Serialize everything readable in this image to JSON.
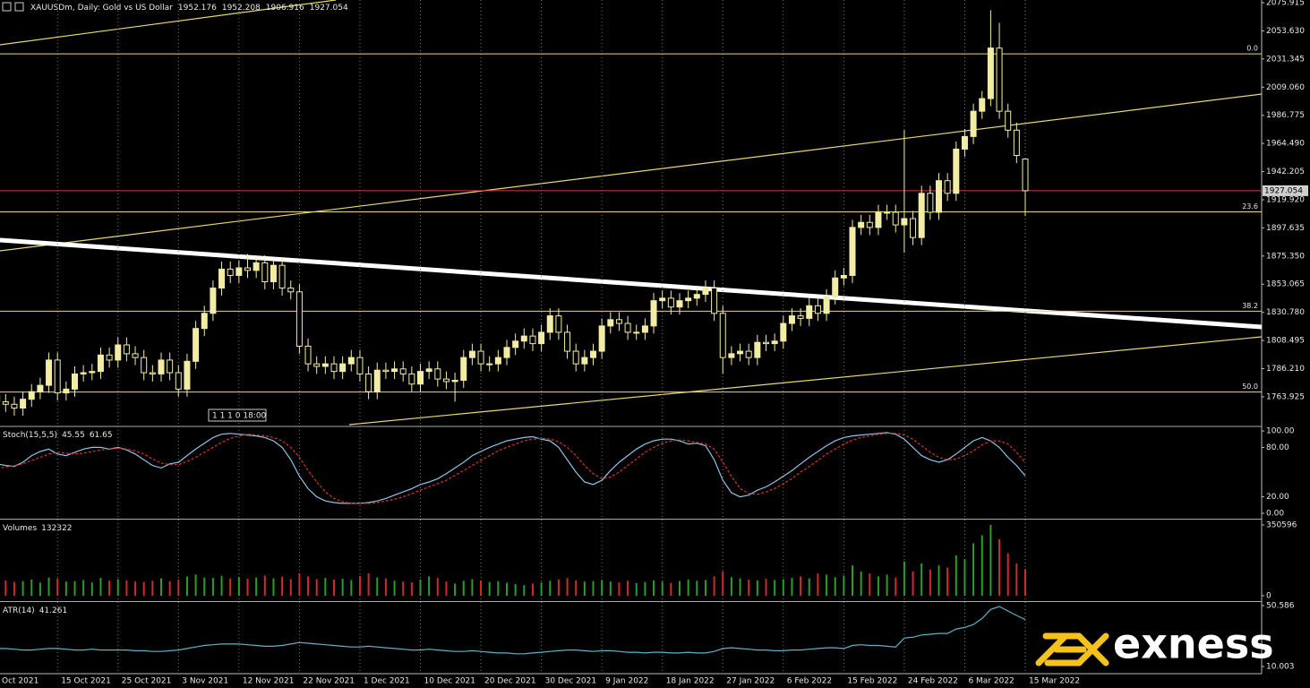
{
  "chart_data": [
    {
      "type": "candlestick",
      "title": "XAUUSDm, Daily:  Gold vs US Dollar",
      "color": "#f3eca4",
      "grid": true,
      "price_line_color": "#d23b3b",
      "fib_color": "#e8d96a",
      "timer": "1 1 1 0 18:00",
      "categories": [
        "Oct 2021",
        null,
        null,
        null,
        null,
        null,
        null,
        "15 Oct 2021",
        null,
        null,
        null,
        null,
        null,
        null,
        "25 Oct 2021",
        null,
        null,
        null,
        null,
        null,
        null,
        "3 Nov 2021",
        null,
        null,
        null,
        null,
        null,
        null,
        "12 Nov 2021",
        null,
        null,
        null,
        null,
        null,
        null,
        "22 Nov 2021",
        null,
        null,
        null,
        null,
        null,
        null,
        "1 Dec 2021",
        null,
        null,
        null,
        null,
        null,
        null,
        "10 Dec 2021",
        null,
        null,
        null,
        null,
        null,
        null,
        "20 Dec 2021",
        null,
        null,
        null,
        null,
        null,
        null,
        "30 Dec 2021",
        null,
        null,
        null,
        null,
        null,
        null,
        "9 Jan 2022",
        null,
        null,
        null,
        null,
        null,
        null,
        "18 Jan 2022",
        null,
        null,
        null,
        null,
        null,
        null,
        "27 Jan 2022",
        null,
        null,
        null,
        null,
        null,
        null,
        "6 Feb 2022",
        null,
        null,
        null,
        null,
        null,
        null,
        "15 Feb 2022",
        null,
        null,
        null,
        null,
        null,
        null,
        "24 Feb 2022",
        null,
        null,
        null,
        null,
        null,
        null,
        "6 Mar 2022",
        null,
        null,
        null,
        null,
        null,
        null,
        "15 Mar 2022"
      ],
      "open": [
        1765,
        1760,
        1758,
        1755,
        1762,
        1768,
        1773,
        1793,
        1767,
        1770,
        1782,
        1783,
        1784,
        1797,
        1793,
        1805,
        1798,
        1795,
        1783,
        1782,
        1793,
        1783,
        1770,
        1792,
        1818,
        1830,
        1850,
        1865,
        1860,
        1866,
        1864,
        1870,
        1855,
        1868,
        1850,
        1847,
        1804,
        1790,
        1788,
        1790,
        1784,
        1790,
        1795,
        1782,
        1768,
        1785,
        1784,
        1786,
        1782,
        1774,
        1784,
        1786,
        1778,
        1776,
        1777,
        1795,
        1800,
        1790,
        1790,
        1795,
        1803,
        1808,
        1812,
        1806,
        1815,
        1828,
        1815,
        1800,
        1790,
        1795,
        1800,
        1820,
        1825,
        1822,
        1815,
        1815,
        1820,
        1840,
        1842,
        1835,
        1840,
        1842,
        1845,
        1850,
        1830,
        1795,
        1798,
        1800,
        1795,
        1807,
        1806,
        1808,
        1822,
        1828,
        1826,
        1836,
        1830,
        1843,
        1858,
        1860,
        1898,
        1902,
        1898,
        1910,
        1910,
        1900,
        1905,
        1890,
        1925,
        1910,
        1935,
        1925,
        1960,
        1970,
        1990,
        2000,
        2040,
        1990,
        1975,
        1952.176
      ],
      "high": [
        1771,
        1766,
        1764,
        1768,
        1774,
        1779,
        1799,
        1799,
        1776,
        1788,
        1789,
        1790,
        1803,
        1803,
        1811,
        1811,
        1804,
        1801,
        1789,
        1799,
        1799,
        1789,
        1798,
        1824,
        1836,
        1856,
        1871,
        1871,
        1872,
        1877,
        1876,
        1876,
        1874,
        1874,
        1856,
        1853,
        1810,
        1796,
        1796,
        1796,
        1796,
        1801,
        1801,
        1788,
        1791,
        1791,
        1792,
        1792,
        1788,
        1790,
        1792,
        1792,
        1784,
        1783,
        1801,
        1806,
        1806,
        1796,
        1801,
        1809,
        1814,
        1818,
        1818,
        1821,
        1834,
        1834,
        1821,
        1806,
        1801,
        1806,
        1826,
        1831,
        1831,
        1828,
        1821,
        1826,
        1846,
        1848,
        1848,
        1846,
        1848,
        1851,
        1856,
        1856,
        1836,
        1804,
        1806,
        1806,
        1813,
        1813,
        1814,
        1828,
        1834,
        1834,
        1842,
        1842,
        1849,
        1864,
        1866,
        1904,
        1908,
        1908,
        1916,
        1916,
        1916,
        1975,
        1911,
        1931,
        1931,
        1941,
        1941,
        1966,
        1976,
        1996,
        2006,
        2070,
        2060,
        1996,
        1981,
        1952.208
      ],
      "low": [
        1754,
        1752,
        1749,
        1749,
        1756,
        1762,
        1767,
        1761,
        1761,
        1764,
        1776,
        1777,
        1778,
        1787,
        1787,
        1792,
        1789,
        1777,
        1776,
        1776,
        1777,
        1764,
        1764,
        1786,
        1812,
        1824,
        1844,
        1854,
        1854,
        1858,
        1858,
        1849,
        1849,
        1844,
        1841,
        1798,
        1784,
        1782,
        1782,
        1778,
        1778,
        1784,
        1776,
        1762,
        1762,
        1778,
        1778,
        1776,
        1768,
        1768,
        1778,
        1772,
        1770,
        1760,
        1771,
        1789,
        1784,
        1784,
        1784,
        1789,
        1797,
        1802,
        1800,
        1800,
        1809,
        1809,
        1794,
        1784,
        1784,
        1789,
        1794,
        1814,
        1816,
        1809,
        1809,
        1809,
        1814,
        1834,
        1829,
        1829,
        1834,
        1836,
        1839,
        1824,
        1782,
        1789,
        1792,
        1789,
        1789,
        1800,
        1800,
        1802,
        1816,
        1820,
        1820,
        1824,
        1824,
        1837,
        1852,
        1854,
        1892,
        1892,
        1892,
        1904,
        1894,
        1878,
        1884,
        1884,
        1904,
        1904,
        1919,
        1919,
        1954,
        1964,
        1984,
        1994,
        1984,
        1969,
        1949,
        1906.916
      ],
      "close": [
        1760,
        1758,
        1755,
        1762,
        1768,
        1773,
        1793,
        1767,
        1770,
        1782,
        1783,
        1784,
        1797,
        1793,
        1805,
        1798,
        1795,
        1783,
        1782,
        1793,
        1783,
        1770,
        1792,
        1818,
        1830,
        1850,
        1865,
        1860,
        1866,
        1864,
        1870,
        1855,
        1868,
        1850,
        1847,
        1804,
        1790,
        1788,
        1790,
        1784,
        1790,
        1795,
        1782,
        1768,
        1785,
        1784,
        1786,
        1782,
        1774,
        1784,
        1786,
        1778,
        1776,
        1777,
        1795,
        1800,
        1790,
        1790,
        1795,
        1803,
        1808,
        1812,
        1806,
        1815,
        1828,
        1815,
        1800,
        1790,
        1795,
        1800,
        1820,
        1825,
        1822,
        1815,
        1815,
        1820,
        1840,
        1842,
        1835,
        1840,
        1842,
        1845,
        1850,
        1830,
        1795,
        1798,
        1800,
        1795,
        1807,
        1806,
        1808,
        1822,
        1828,
        1826,
        1836,
        1830,
        1843,
        1858,
        1860,
        1898,
        1902,
        1898,
        1910,
        1910,
        1900,
        1905,
        1890,
        1925,
        1910,
        1935,
        1925,
        1960,
        1970,
        1990,
        2000,
        2040,
        1990,
        1975,
        1955,
        1927.054
      ],
      "ylim": [
        1741.18,
        2078.05
      ],
      "yticks": [
        2075.915,
        {
          "value": 2053.63,
          "label": "2053.630"
        },
        2031.345,
        {
          "value": 2009.06,
          "label": "2009.060"
        },
        1986.775,
        {
          "value": 1964.49,
          "label": "1964.490"
        },
        1942.205,
        {
          "value": 1919.92,
          "label": "1919.920"
        },
        1897.635,
        {
          "value": 1875.35,
          "label": "1875.350"
        },
        1853.065,
        {
          "value": 1830.78,
          "label": "1830.780"
        },
        1808.495,
        {
          "value": 1786.21,
          "label": "1786.210"
        },
        1763.925
      ],
      "fib_levels": [
        {
          "label": "0.0",
          "value": 2035.4
        },
        {
          "label": "23.6",
          "value": 1910.3
        },
        {
          "label": "38.2",
          "value": 1831.7
        },
        {
          "label": "50.0",
          "value": 1767.7
        }
      ]
    },
    {
      "type": "line",
      "title": "Stoch(15,5,5)",
      "ylim": [
        -5.49,
        104.4
      ],
      "yticks": [
        {
          "value": 100,
          "label": "100.00"
        },
        {
          "value": 80,
          "label": "80.00"
        },
        {
          "value": 20,
          "label": "20.00"
        },
        {
          "value": 0,
          "label": "0.00"
        }
      ],
      "series": [
        {
          "color": "#8fc3e8",
          "dashed": false,
          "values": [
            60,
            58,
            57,
            62,
            70,
            75,
            78,
            72,
            70,
            74,
            78,
            80,
            80,
            78,
            80,
            77,
            72,
            65,
            58,
            55,
            60,
            62,
            70,
            78,
            85,
            92,
            96,
            97,
            96,
            95,
            94,
            92,
            88,
            80,
            65,
            45,
            30,
            20,
            15,
            13,
            12,
            12,
            12,
            13,
            15,
            18,
            22,
            26,
            30,
            35,
            38,
            42,
            48,
            55,
            62,
            70,
            75,
            80,
            84,
            88,
            90,
            92,
            93,
            90,
            88,
            80,
            65,
            50,
            38,
            35,
            40,
            52,
            62,
            70,
            78,
            84,
            88,
            90,
            90,
            88,
            84,
            85,
            82,
            65,
            40,
            25,
            20,
            22,
            28,
            32,
            38,
            45,
            52,
            60,
            68,
            75,
            82,
            88,
            92,
            94,
            95,
            96,
            97,
            98,
            96,
            90,
            80,
            70,
            65,
            62,
            65,
            72,
            80,
            88,
            92,
            88,
            80,
            68,
            58,
            45.55
          ]
        },
        {
          "color": "#d43434",
          "dashed": true,
          "values": [
            55,
            56,
            58,
            60,
            64,
            68,
            72,
            74,
            73,
            72,
            73,
            75,
            77,
            78,
            79,
            78,
            76,
            72,
            66,
            61,
            59,
            59,
            63,
            68,
            74,
            80,
            86,
            91,
            94,
            96,
            95,
            94,
            92,
            88,
            80,
            68,
            52,
            38,
            26,
            18,
            14,
            12,
            12,
            12,
            13,
            15,
            17,
            20,
            24,
            28,
            32,
            36,
            40,
            46,
            52,
            58,
            64,
            70,
            76,
            80,
            84,
            88,
            90,
            91,
            90,
            87,
            80,
            70,
            58,
            48,
            42,
            44,
            50,
            58,
            66,
            74,
            80,
            85,
            88,
            89,
            88,
            86,
            84,
            78,
            62,
            45,
            30,
            24,
            23,
            26,
            30,
            36,
            42,
            50,
            57,
            64,
            72,
            78,
            84,
            89,
            92,
            94,
            96,
            97,
            97,
            95,
            90,
            82,
            74,
            68,
            65,
            66,
            70,
            76,
            83,
            88,
            88,
            84,
            74,
            61.65
          ]
        }
      ]
    },
    {
      "type": "bar",
      "title": "Volumes",
      "up_color": "#2a9d2a",
      "down_color": "#d02a2a",
      "ylim": [
        -17979,
        373070
      ],
      "yticks": [
        350596,
        0
      ],
      "values": [
        70000,
        75000,
        68000,
        72000,
        80000,
        65000,
        90000,
        85000,
        70000,
        72000,
        78000,
        66000,
        88000,
        74000,
        82000,
        76000,
        70000,
        68000,
        74000,
        86000,
        72000,
        80000,
        95000,
        105000,
        90000,
        88000,
        98000,
        86000,
        92000,
        84000,
        90000,
        100000,
        86000,
        94000,
        82000,
        110000,
        96000,
        82000,
        88000,
        80000,
        84000,
        78000,
        98000,
        112000,
        90000,
        86000,
        74000,
        70000,
        66000,
        80000,
        96000,
        88000,
        70000,
        60000,
        74000,
        82000,
        76000,
        68000,
        72000,
        64000,
        58000,
        52000,
        60000,
        66000,
        74000,
        80000,
        88000,
        76000,
        70000,
        72000,
        78000,
        70000,
        66000,
        74000,
        62000,
        68000,
        76000,
        70000,
        64000,
        72000,
        80000,
        74000,
        78000,
        96000,
        120000,
        92000,
        86000,
        80000,
        76000,
        84000,
        78000,
        82000,
        88000,
        96000,
        86000,
        110000,
        104000,
        92000,
        100000,
        150000,
        120000,
        110000,
        96000,
        104000,
        90000,
        170000,
        120000,
        160000,
        130000,
        150000,
        140000,
        200000,
        180000,
        260000,
        300000,
        350596,
        280000,
        210000,
        160000,
        132322
      ]
    },
    {
      "type": "line",
      "title": "ATR(14)",
      "ylim": [
        5.825,
        52.376
      ],
      "yticks": [
        50.586,
        10.003
      ],
      "series": [
        {
          "color": "#5ab4c8",
          "dashed": false,
          "values": [
            22,
            22,
            21.5,
            21,
            21,
            21.5,
            22,
            22,
            21.5,
            21,
            21,
            21.5,
            21,
            21,
            21,
            21,
            20.5,
            20.5,
            20,
            20,
            20.5,
            21,
            22,
            23,
            24,
            24.5,
            25,
            25,
            25,
            24.5,
            24,
            23.5,
            23.5,
            24,
            25,
            26,
            25.5,
            25,
            24.5,
            24,
            23.5,
            23,
            23,
            23.5,
            23,
            22.5,
            22,
            21.5,
            21,
            21,
            21.5,
            21,
            20.5,
            20,
            20,
            20.5,
            20,
            19.5,
            19,
            19,
            18.5,
            18.5,
            19,
            19.5,
            20,
            20.5,
            21,
            21,
            20.5,
            20,
            20.5,
            20.5,
            20,
            19.5,
            19.5,
            19,
            19.5,
            19.5,
            19,
            19,
            19.5,
            19,
            19,
            20,
            22,
            22.5,
            22,
            21.5,
            21,
            21,
            20.5,
            20.5,
            21,
            21,
            21.5,
            22,
            22.5,
            22.5,
            22,
            24,
            24.5,
            24,
            24,
            23.5,
            23,
            29,
            29.5,
            31,
            31.5,
            32,
            32,
            35,
            36,
            38,
            42,
            48,
            50,
            47,
            44,
            41.261
          ]
        }
      ]
    }
  ],
  "watermark": "exness"
}
